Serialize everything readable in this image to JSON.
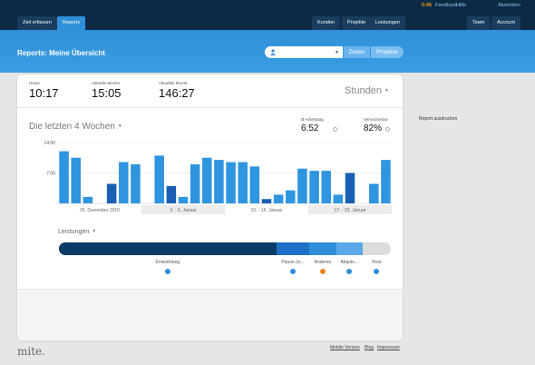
{
  "nav": {
    "tabs": [
      {
        "label": "Zeit erfassen"
      },
      {
        "label": "Reports"
      },
      {
        "label": "Kunden"
      },
      {
        "label": "Projekte"
      },
      {
        "label": "Leistungen"
      },
      {
        "label": "Team"
      },
      {
        "label": "Account"
      }
    ],
    "timer": "0:46",
    "feedback": "Feedback",
    "help": "Hilfe",
    "logout": "Abmelden"
  },
  "header": {
    "title": "Reports: Meine Übersicht",
    "user_select_value": "",
    "seg_zeiten": "Zeiten",
    "seg_projekte": "Projekte"
  },
  "stats": {
    "today_label": "Heute",
    "today_value": "10:17",
    "week_label": "Aktuelle Woche",
    "week_value": "15:05",
    "month_label": "Aktueller Monat",
    "month_value": "146:27",
    "unit_select": "Stunden"
  },
  "weeks": {
    "title": "Die letzten 4 Wochen",
    "avg_label": "Ø Arbeitstag",
    "avg_value": "6:52",
    "billable_label": "Verrechenbar",
    "billable_value": "82%"
  },
  "chart_data": {
    "type": "bar",
    "y_ticks": [
      "14:00",
      "7:00"
    ],
    "ylim": [
      0,
      14
    ],
    "values": [
      12,
      10.5,
      1.5,
      0,
      4.5,
      9.5,
      9,
      0,
      11,
      4,
      1.5,
      9,
      10.5,
      10,
      9.5,
      9.5,
      8.5,
      1,
      2,
      3,
      8,
      7.5,
      7.5,
      2,
      7,
      0,
      4.5,
      10
    ],
    "weeks": [
      {
        "label": "26. Dezember 2010",
        "shaded": false
      },
      {
        "label": "3. - 9. Januar",
        "shaded": true
      },
      {
        "label": "10. - 16. Januar",
        "shaded": false
      },
      {
        "label": "17. - 23. Januar",
        "shaded": true
      }
    ]
  },
  "services": {
    "title": "Leistungen",
    "segments": [
      {
        "name": "Entwicklung",
        "share": 0.655,
        "color": "#0d3a66",
        "dot": "#2f8fd8"
      },
      {
        "name": "Pause (ni...",
        "share": 0.1,
        "color": "#1f6fc6",
        "dot": "#2f8fd8"
      },
      {
        "name": "Anderes",
        "share": 0.08,
        "color": "#2f8fd8",
        "dot": "#f0841e"
      },
      {
        "name": "Akquis...",
        "share": 0.08,
        "color": "#5aa9e6",
        "dot": "#2f8fd8"
      },
      {
        "name": "Rest",
        "share": 0.085,
        "color": "#dcdcdc",
        "dot": "#2f8fd8"
      }
    ]
  },
  "side": {
    "print": "Report ausdrucken"
  },
  "footer": {
    "logo": "mite.",
    "mobile": "Mobile Version",
    "blog": "Blog",
    "imprint": "Impressum"
  }
}
